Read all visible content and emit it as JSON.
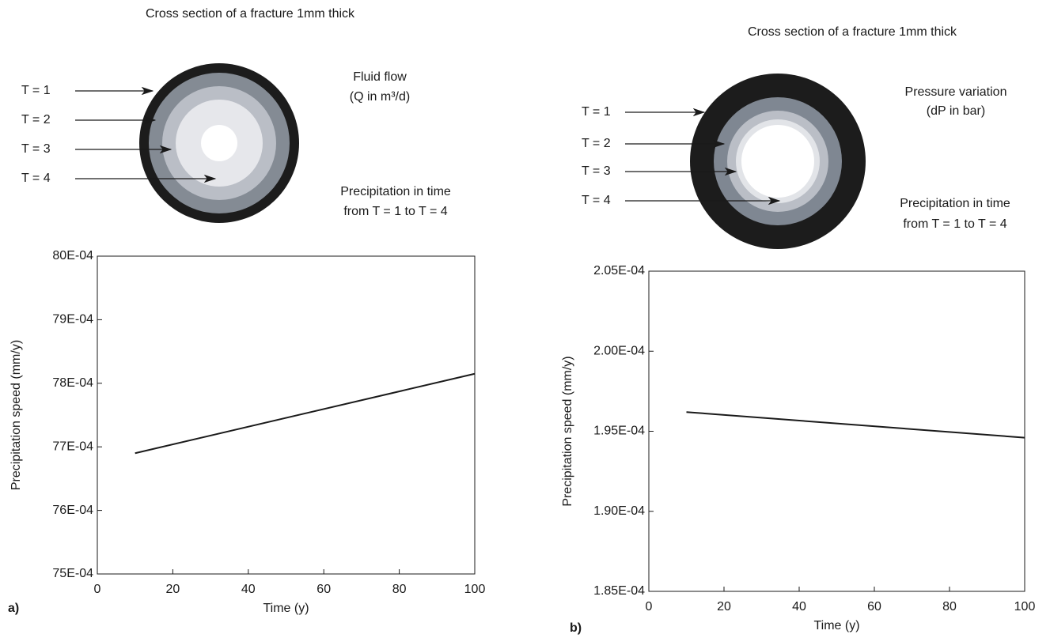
{
  "diagrams": [
    {
      "title": "Cross section of a fracture 1mm thick",
      "time_labels": [
        "T = 1",
        "T = 2",
        "T = 3",
        "T = 4"
      ],
      "quantity": [
        "Fluid flow",
        "(Q in m³/d)"
      ],
      "note": [
        "Precipitation in time",
        "from  T = 1 to T = 4"
      ]
    },
    {
      "title": "Cross section of a fracture 1mm thick",
      "time_labels": [
        "T = 1",
        "T = 2",
        "T = 3",
        "T = 4"
      ],
      "quantity": [
        "Pressure variation",
        "(dP in bar)"
      ],
      "note": [
        "Precipitation in time",
        "from  T = 1 to T = 4"
      ]
    }
  ],
  "chart_data": [
    {
      "type": "line",
      "panel_label": "a)",
      "xlabel": "Time (y)",
      "ylabel": "Precipitation speed (mm/y)",
      "x": [
        10,
        100
      ],
      "values": [
        0.00769,
        0.007815
      ],
      "color": "#1a1a1a",
      "xlim": [
        0,
        100
      ],
      "xticks": [
        0,
        20,
        40,
        60,
        80,
        100
      ],
      "ylim": [
        0.0075,
        0.008
      ],
      "yticks": [
        {
          "value": 0.0075,
          "label": "75E-04"
        },
        {
          "value": 0.0076,
          "label": "76E-04"
        },
        {
          "value": 0.0077,
          "label": "77E-04"
        },
        {
          "value": 0.0078,
          "label": "78E-04"
        },
        {
          "value": 0.0079,
          "label": "79E-04"
        },
        {
          "value": 0.008,
          "label": "80E-04"
        }
      ]
    },
    {
      "type": "line",
      "panel_label": "b)",
      "xlabel": "Time (y)",
      "ylabel": "Precipitation speed (mm/y)",
      "x": [
        10,
        100
      ],
      "values": [
        0.0001962,
        0.0001946
      ],
      "color": "#1a1a1a",
      "xlim": [
        0,
        100
      ],
      "xticks": [
        0,
        20,
        40,
        60,
        80,
        100
      ],
      "ylim": [
        0.000185,
        0.000205
      ],
      "yticks": [
        {
          "value": 0.000185,
          "label": "1.85E-04"
        },
        {
          "value": 0.00019,
          "label": "1.90E-04"
        },
        {
          "value": 0.000195,
          "label": "1.95E-04"
        },
        {
          "value": 0.0002,
          "label": "2.00E-04"
        },
        {
          "value": 0.000205,
          "label": "2.05E-04"
        }
      ]
    }
  ]
}
